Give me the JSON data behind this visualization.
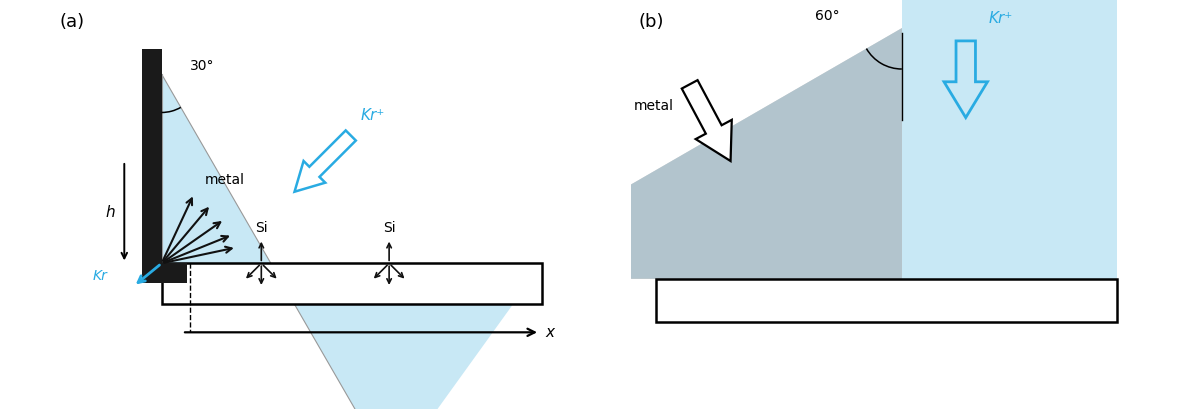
{
  "fig_width": 11.82,
  "fig_height": 4.09,
  "bg_color": "#ffffff",
  "cyan_color": "#29abe2",
  "light_blue": "#c8e8f5",
  "gray_cone": "#c0c0c0",
  "overlap_color": "#a0b8c8",
  "panel_a_label": "(a)",
  "panel_b_label": "(b)",
  "angle_a_label": "30°",
  "angle_b_label": "60°",
  "kr_plus_label": "Kr⁺",
  "kr_label": "Kr",
  "metal_label": "metal",
  "si_label": "Si",
  "h_label": "h",
  "x_label": "x"
}
